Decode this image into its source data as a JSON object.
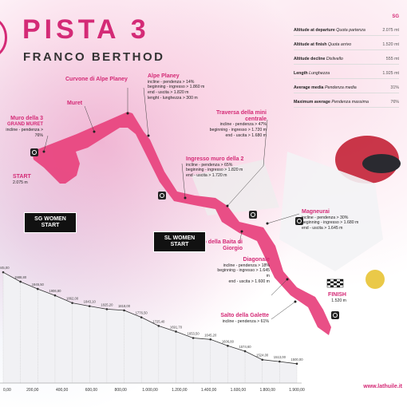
{
  "header": {
    "title": "PISTA 3",
    "subtitle": "FRANCO BERTHOD"
  },
  "stats": {
    "column_head": "SG",
    "rows": [
      {
        "label": "Altitude at departure",
        "label_it": "Quota partenza",
        "value": "2.075 mt"
      },
      {
        "label": "Altitude at finish",
        "label_it": "Quota arrivo",
        "value": "1.520 mt"
      },
      {
        "label": "Altitude decline",
        "label_it": "Dislivello",
        "value": "555 mt"
      },
      {
        "label": "Length",
        "label_it": "Lunghezza",
        "value": "1.925 mt"
      },
      {
        "label": "Average media",
        "label_it": "Pendenza media",
        "value": "31%"
      },
      {
        "label": "Maximum average",
        "label_it": "Pendenza massima",
        "value": "76%"
      }
    ]
  },
  "course": {
    "start_label": "START",
    "start_alt": "2.075 m",
    "finish_label": "FINISH",
    "finish_alt": "1.520 m",
    "sg_start": "SG WOMEN START",
    "sl_start": "SL WOMEN START",
    "labels": {
      "curvone": "Curvone di Alpe Planey",
      "muret": "Muret",
      "muro_title": "Muro della 3",
      "muro_sub": "GRAND MURET",
      "muro_line1": "incline - pendenza > 76%",
      "alpe_title": "Alpe Planey",
      "alpe_l1": "incline - pendenza > 14%",
      "alpe_l2": "beginning - ingresso > 1.860 m",
      "alpe_l3": "end - uscita > 1.820 m",
      "alpe_l4": "lenght - lunghezza > 300 m",
      "traversa_title": "Traversa della mini centrale",
      "traversa_l1": "incline - pendenza > 47%",
      "traversa_l2": "beginning - ingresso > 1.720 m",
      "traversa_l3": "end - uscita > 1.680 m",
      "ingresso_title": "Ingresso muro della 2",
      "ingresso_l1": "incline - pendenza > 65%",
      "ingresso_l2": "beginning - ingresso > 1.820 m",
      "ingresso_l3": "end - uscita > 1.720 m",
      "magneurai_title": "Magneurai",
      "magneurai_l1": "incline - pendenza > 30%",
      "magneurai_l2": "beginning - ingresso > 1.680 m",
      "magneurai_l3": "end - uscita > 1.645 m",
      "baita": "Salto della Baita di Giorgio",
      "diagonale_title": "Diagonale",
      "diagonale_l1": "incline - pendenza > 18%",
      "diagonale_l2": "beginning - ingresso > 1.645 m",
      "diagonale_l3": "end - uscita > 1.600 m",
      "galette_title": "Salto della Galette",
      "galette_l1": "incline - pendenza > 61%"
    }
  },
  "profile": {
    "distance_ticks": [
      "0,00",
      "200,00",
      "400,00",
      "600,00",
      "800,00",
      "1.000,00",
      "1.200,00",
      "1.400,00",
      "1.600,00",
      "1.800,00",
      "1.900,00"
    ],
    "points": [
      {
        "label": "2045,00",
        "altitude": 2045
      },
      {
        "label": "1988,80",
        "altitude": 1988.8
      },
      {
        "label": "1945,50",
        "altitude": 1945.5
      },
      {
        "label": "1906,80",
        "altitude": 1906.8
      },
      {
        "label": "1862,00",
        "altitude": 1862
      },
      {
        "label": "1843,10",
        "altitude": 1843.1
      },
      {
        "label": "1825,20",
        "altitude": 1825.2
      },
      {
        "label": "1818,00",
        "altitude": 1818
      },
      {
        "label": "1776,50",
        "altitude": 1776.5
      },
      {
        "label": "1725,40",
        "altitude": 1725.4
      },
      {
        "label": "1691,70",
        "altitude": 1691.7
      },
      {
        "label": "1653,50",
        "altitude": 1653.5
      },
      {
        "label": "1645,20",
        "altitude": 1645.2
      },
      {
        "label": "1606,80",
        "altitude": 1606.8
      },
      {
        "label": "1574,60",
        "altitude": 1574.6
      },
      {
        "label": "1524,00",
        "altitude": 1524
      },
      {
        "label": "1513,00",
        "altitude": 1513
      },
      {
        "label": "1500,00",
        "altitude": 1500
      }
    ]
  },
  "footer": {
    "url": "www.lathuile.it"
  },
  "colors": {
    "accent": "#d42a76",
    "track": "#e8467f",
    "dark": "#111111"
  }
}
